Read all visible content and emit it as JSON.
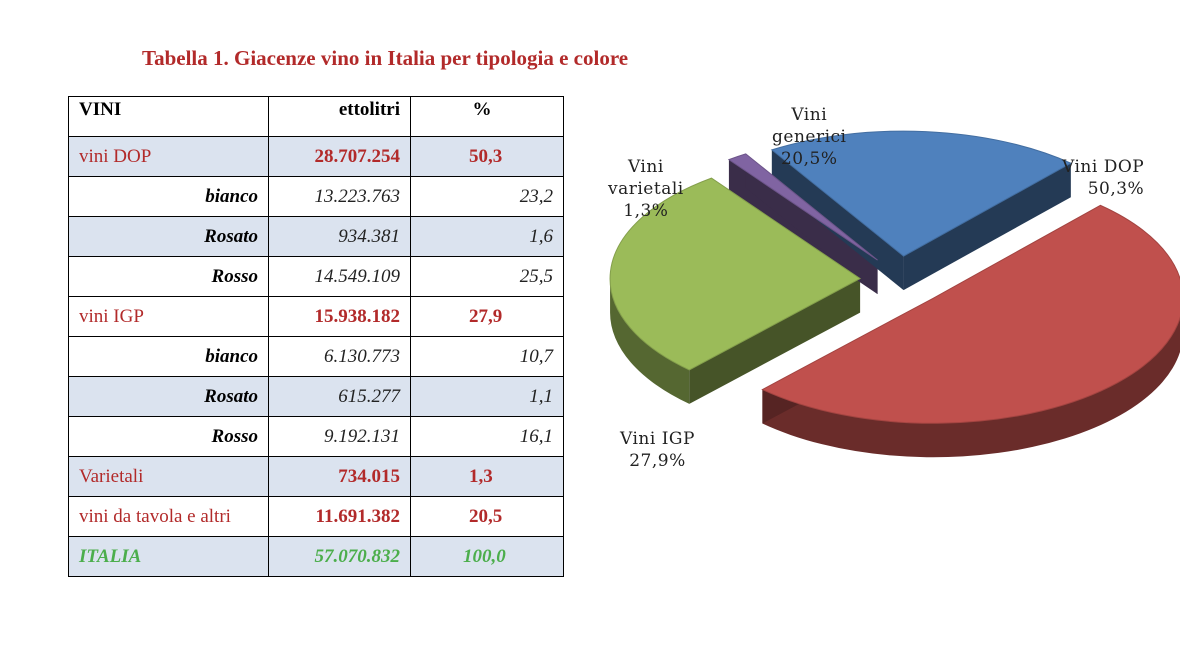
{
  "title": "Tabella 1. Giacenze vino in Italia per tipologia e colore",
  "table": {
    "headers": [
      "VINI",
      "ettolitri",
      "%"
    ],
    "rows": [
      {
        "kind": "cat",
        "label": "vini DOP",
        "hl": "28.707.254",
        "pct": "50,3"
      },
      {
        "kind": "sub",
        "label": "bianco",
        "hl": "13.223.763",
        "pct": "23,2"
      },
      {
        "kind": "sub",
        "label": "Rosato",
        "hl": "934.381",
        "pct": "1,6"
      },
      {
        "kind": "sub",
        "label": "Rosso",
        "hl": "14.549.109",
        "pct": "25,5"
      },
      {
        "kind": "cat",
        "label": "vini IGP",
        "hl": "15.938.182",
        "pct": "27,9"
      },
      {
        "kind": "sub",
        "label": "bianco",
        "hl": "6.130.773",
        "pct": "10,7"
      },
      {
        "kind": "sub",
        "label": "Rosato",
        "hl": "615.277",
        "pct": "1,1"
      },
      {
        "kind": "sub",
        "label": "Rosso",
        "hl": "9.192.131",
        "pct": "16,1"
      },
      {
        "kind": "cat",
        "label": "Varietali",
        "hl": "734.015",
        "pct": "1,3"
      },
      {
        "kind": "cat",
        "label": "vini da tavola e altri",
        "hl": "11.691.382",
        "pct": "20,5"
      },
      {
        "kind": "tot",
        "label": "ITALIA",
        "hl": "57.070.832",
        "pct": "100,0"
      }
    ]
  },
  "chart_data": {
    "type": "pie",
    "style": "3d-exploded",
    "slices": [
      {
        "label": "Vini DOP",
        "pct_label": "50,3%",
        "value": 50.3,
        "color": "#c0504d"
      },
      {
        "label": "Vini IGP",
        "pct_label": "27,9%",
        "value": 27.9,
        "color": "#9bbb59"
      },
      {
        "label": "Vini varietali",
        "pct_label": "1,3%",
        "value": 1.3,
        "color": "#8064a2"
      },
      {
        "label": "Vini generici",
        "pct_label": "20,5%",
        "value": 20.5,
        "color": "#4f81bd"
      }
    ],
    "labels": {
      "dop": [
        "Vini DOP",
        "50,3%"
      ],
      "igp": [
        "Vini IGP",
        "27,9%"
      ],
      "var": [
        "Vini",
        "varietali",
        "1,3%"
      ],
      "gen": [
        "Vini",
        "generici",
        "20,5%"
      ]
    }
  },
  "colors": {
    "title": "#b22a2a",
    "category": "#b22a2a",
    "total": "#4cae4c",
    "shade": "#dbe3ef"
  }
}
